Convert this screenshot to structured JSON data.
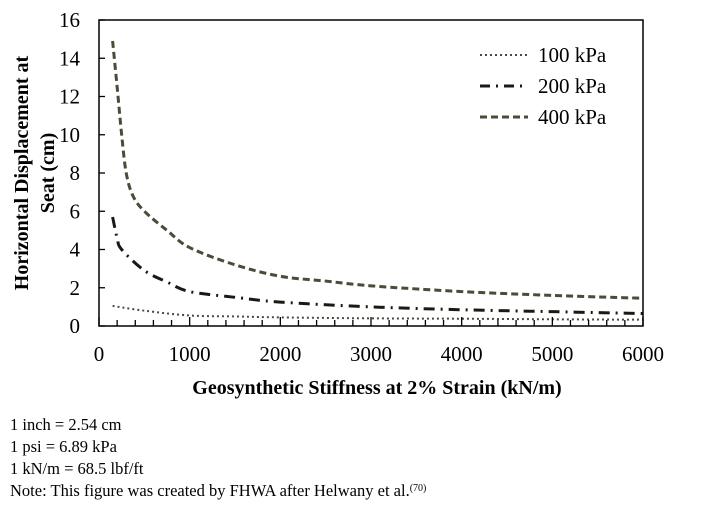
{
  "chart_data": {
    "type": "line",
    "title": "",
    "xlabel": "Geosynthetic Stiffness at 2% Strain (kN/m)",
    "ylabel_lines": [
      "Horizontal Displacement at",
      "Seat (cm)"
    ],
    "xlim": [
      0,
      6000
    ],
    "ylim": [
      0,
      16
    ],
    "x_ticks": [
      0,
      1000,
      2000,
      3000,
      4000,
      5000,
      6000
    ],
    "y_ticks": [
      0,
      2,
      4,
      6,
      8,
      10,
      12,
      14,
      16
    ],
    "x_tick_labels": [
      "0",
      "1000",
      "2000",
      "3000",
      "4000",
      "5000",
      "6000"
    ],
    "y_tick_labels": [
      "0",
      "2",
      "4",
      "6",
      "8",
      "10",
      "12",
      "14",
      "16"
    ],
    "grid": false,
    "legend_position": "top-right",
    "series": [
      {
        "name": "100 kPa",
        "style": "dotted",
        "color": "#4a4a3c",
        "x": [
          150,
          500,
          1000,
          1500,
          2000,
          3000,
          4000,
          5000,
          6000
        ],
        "y": [
          1.05,
          0.8,
          0.55,
          0.5,
          0.45,
          0.4,
          0.38,
          0.35,
          0.33
        ]
      },
      {
        "name": "200 kPa",
        "style": "dash-dot",
        "color": "#1a1a14",
        "x": [
          150,
          200,
          250,
          500,
          750,
          1000,
          1500,
          2000,
          3000,
          4000,
          5000,
          6000
        ],
        "y": [
          5.7,
          4.6,
          4.0,
          2.9,
          2.3,
          1.8,
          1.5,
          1.25,
          1.0,
          0.85,
          0.75,
          0.65
        ]
      },
      {
        "name": "400 kPa",
        "style": "dashed",
        "color": "#4d4a38",
        "x": [
          150,
          200,
          250,
          300,
          375,
          500,
          750,
          1000,
          1500,
          2000,
          2500,
          3000,
          4000,
          5000,
          6000
        ],
        "y": [
          14.9,
          12.5,
          10.0,
          8.0,
          6.8,
          6.0,
          5.0,
          4.1,
          3.2,
          2.6,
          2.35,
          2.1,
          1.8,
          1.6,
          1.45
        ]
      }
    ]
  },
  "notes": [
    "1 inch = 2.54 cm",
    "1 psi = 6.89 kPa",
    "1 kN/m = 68.5 lbf/ft"
  ],
  "source_note": {
    "text": "Note: This figure was created by FHWA after Helwany et al.",
    "ref": "(70)"
  }
}
